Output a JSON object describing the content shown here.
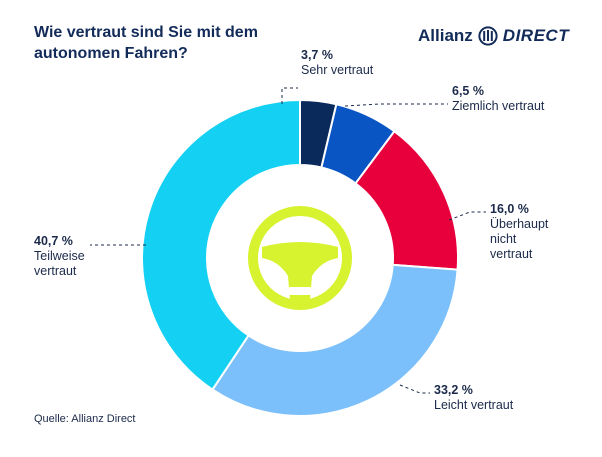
{
  "title": "Wie vertraut sind Sie mit dem autonomen Fahren?",
  "brand": {
    "word1": "Allianz",
    "word2": "DIRECT",
    "mark_color": "#122b59"
  },
  "source": "Quelle: Allianz Direct",
  "center_icon": {
    "name": "steering-wheel-icon",
    "color": "#d7f22f"
  },
  "chart_data": {
    "type": "pie",
    "title": "Wie vertraut sind Sie mit dem autonomen Fahren?",
    "donut": true,
    "categories": [
      "Sehr vertraut",
      "Ziemlich vertraut",
      "Überhaupt nicht vertraut",
      "Leicht vertraut",
      "Teilweise vertraut"
    ],
    "values": [
      3.7,
      6.5,
      16.0,
      33.2,
      40.7
    ],
    "value_labels": [
      "3,7 %",
      "6,5 %",
      "16,0 %",
      "33,2 %",
      "40,7 %"
    ],
    "colors": [
      "#0a2a5c",
      "#0a55c4",
      "#e8003d",
      "#7cc0fb",
      "#14d0f3"
    ]
  }
}
